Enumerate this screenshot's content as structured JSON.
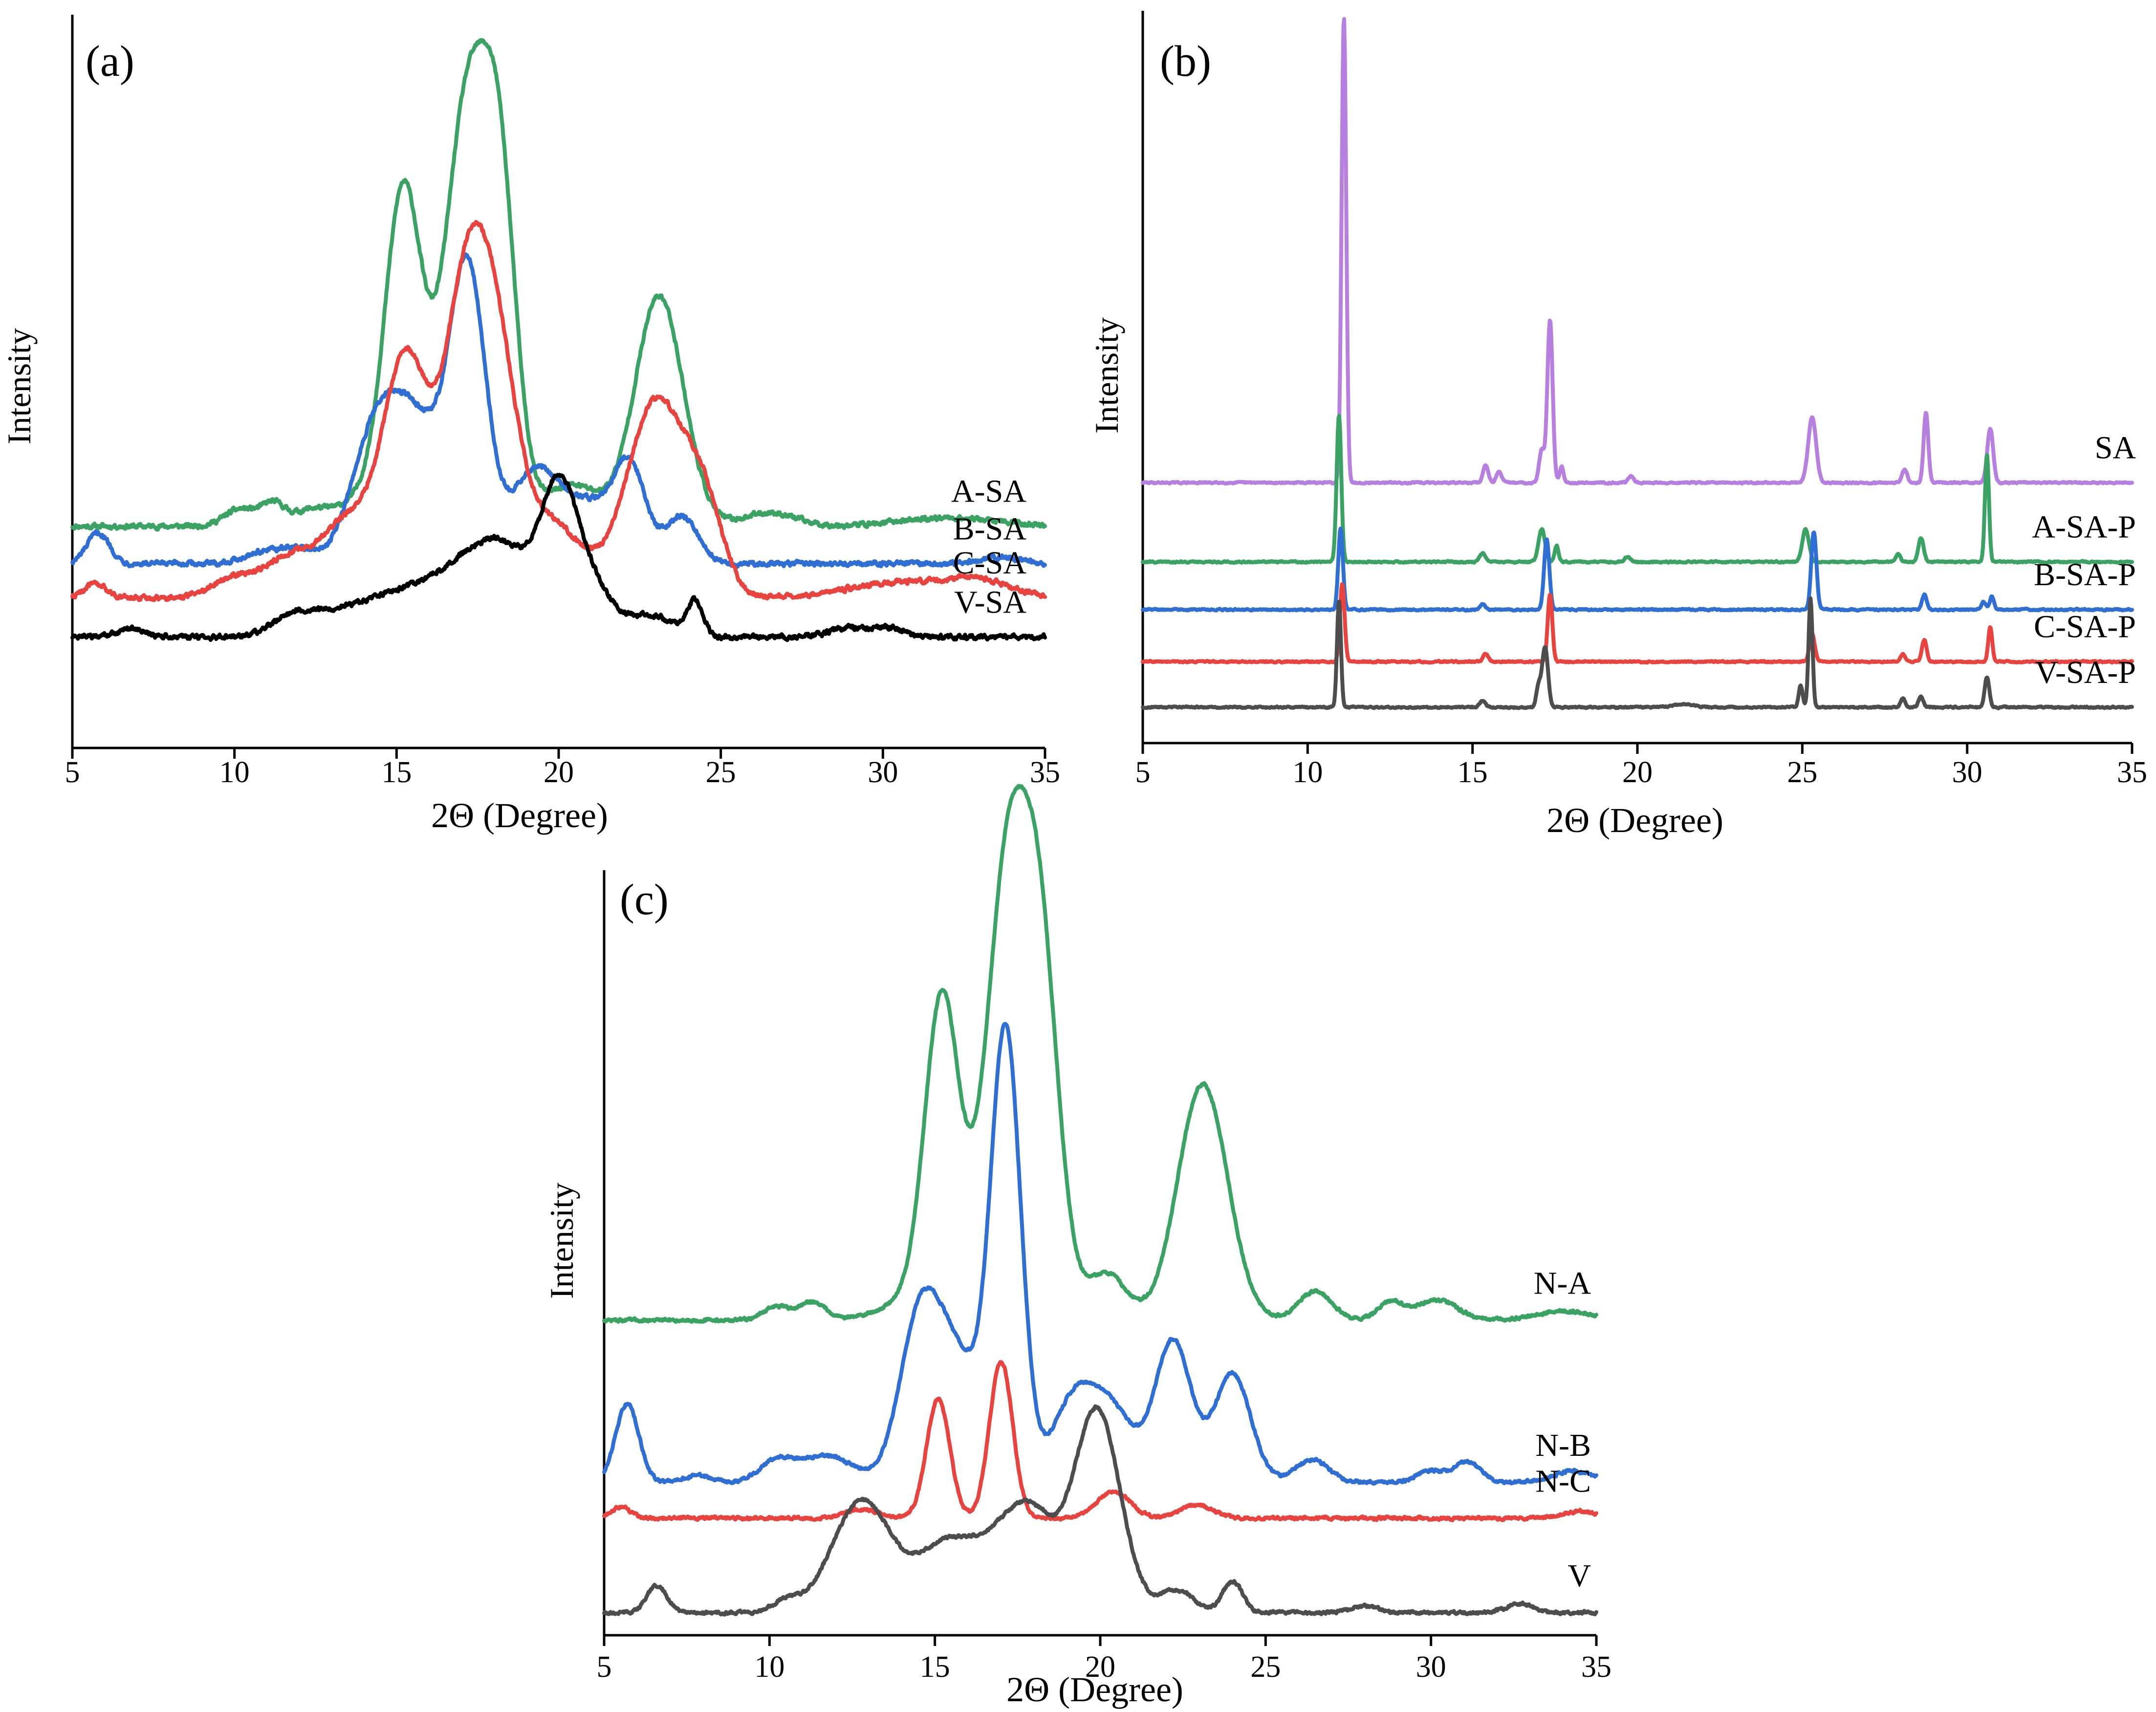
{
  "chart_data": [
    {
      "panel": "(a)",
      "type": "line",
      "title": "",
      "xlabel": "2Θ (Degree)",
      "ylabel": "Intensity",
      "xlim": [
        5,
        35
      ],
      "xticks": [
        5,
        10,
        15,
        20,
        25,
        30,
        35
      ],
      "y_ticks_shown": false,
      "grid": false,
      "series": [
        {
          "name": "A-SA",
          "color": "#3aa363",
          "baseline": 1.2,
          "peaks": [
            [
              10.2,
              0.1,
              0.5
            ],
            [
              11.2,
              0.12,
              0.35
            ],
            [
              12.3,
              0.06,
              0.5
            ],
            [
              15.2,
              1.65,
              0.55
            ],
            [
              17.2,
              2.15,
              0.65
            ],
            [
              18.2,
              1.6,
              0.5
            ],
            [
              16.1,
              0.4,
              1.8
            ],
            [
              20.5,
              0.22,
              0.8
            ],
            [
              23.1,
              1.35,
              0.75
            ],
            [
              26.5,
              0.08,
              0.8
            ],
            [
              32.0,
              0.05,
              1.5
            ]
          ]
        },
        {
          "name": "B-SA",
          "color": "#2f6fd4",
          "baseline": 0.98,
          "peaks": [
            [
              5.8,
              0.18,
              0.35
            ],
            [
              10.9,
              0.07,
              0.6
            ],
            [
              12.0,
              0.08,
              0.5
            ],
            [
              14.2,
              0.55,
              0.7
            ],
            [
              15.5,
              0.85,
              0.9
            ],
            [
              17.2,
              1.65,
              0.55
            ],
            [
              19.3,
              0.55,
              0.8
            ],
            [
              21.0,
              0.3,
              0.7
            ],
            [
              22.2,
              0.55,
              0.5
            ],
            [
              23.8,
              0.28,
              0.5
            ],
            [
              33.6,
              0.04,
              0.6
            ]
          ]
        },
        {
          "name": "C-SA",
          "color": "#e8433f",
          "baseline": 0.78,
          "peaks": [
            [
              5.7,
              0.08,
              0.35
            ],
            [
              10.0,
              0.12,
              0.7
            ],
            [
              11.6,
              0.2,
              0.7
            ],
            [
              13.5,
              0.45,
              0.9
            ],
            [
              15.3,
              1.35,
              0.7
            ],
            [
              17.2,
              1.85,
              0.7
            ],
            [
              18.2,
              0.9,
              0.6
            ],
            [
              19.7,
              0.45,
              1.0
            ],
            [
              23.0,
              1.15,
              0.9
            ],
            [
              24.5,
              0.45,
              0.6
            ],
            [
              30.5,
              0.09,
              1.6
            ],
            [
              33.0,
              0.09,
              1.0
            ]
          ]
        },
        {
          "name": "V-SA",
          "color": "#000000",
          "baseline": 0.55,
          "peaks": [
            [
              6.8,
              0.05,
              0.4
            ],
            [
              11.7,
              0.09,
              0.6
            ],
            [
              13.0,
              0.12,
              1.0
            ],
            [
              15.3,
              0.25,
              1.2
            ],
            [
              17.4,
              0.38,
              1.0
            ],
            [
              18.6,
              0.32,
              0.8
            ],
            [
              20.0,
              0.8,
              0.55
            ],
            [
              21.0,
              0.3,
              0.6
            ],
            [
              22.8,
              0.13,
              0.7
            ],
            [
              24.2,
              0.2,
              0.25
            ],
            [
              29.0,
              0.06,
              0.6
            ],
            [
              30.2,
              0.05,
              0.4
            ]
          ]
        }
      ]
    },
    {
      "panel": "(b)",
      "type": "line",
      "title": "",
      "xlabel": "2Θ (Degree)",
      "ylabel": "Intensity",
      "xlim": [
        5,
        35
      ],
      "xticks": [
        5,
        10,
        15,
        20,
        25,
        30,
        35
      ],
      "y_ticks_shown": false,
      "grid": false,
      "series": [
        {
          "name": "SA",
          "color": "#b77fe0",
          "baseline": 2.05,
          "peaks": [
            [
              11.1,
              4.3,
              0.07
            ],
            [
              15.4,
              0.16,
              0.08
            ],
            [
              15.8,
              0.1,
              0.08
            ],
            [
              17.35,
              1.5,
              0.08
            ],
            [
              17.1,
              0.3,
              0.08
            ],
            [
              17.7,
              0.15,
              0.06
            ],
            [
              19.8,
              0.06,
              0.08
            ],
            [
              25.3,
              0.6,
              0.12
            ],
            [
              28.1,
              0.12,
              0.08
            ],
            [
              28.75,
              0.65,
              0.07
            ],
            [
              30.7,
              0.5,
              0.09
            ]
          ]
        },
        {
          "name": "A-SA-P",
          "color": "#3aa363",
          "baseline": 1.32,
          "peaks": [
            [
              10.95,
              1.35,
              0.07
            ],
            [
              15.3,
              0.08,
              0.08
            ],
            [
              17.1,
              0.3,
              0.1
            ],
            [
              17.55,
              0.15,
              0.06
            ],
            [
              19.7,
              0.05,
              0.08
            ],
            [
              25.1,
              0.3,
              0.1
            ],
            [
              27.9,
              0.07,
              0.07
            ],
            [
              28.6,
              0.22,
              0.08
            ],
            [
              30.6,
              1.0,
              0.06
            ]
          ]
        },
        {
          "name": "B-SA-P",
          "color": "#2f6fd4",
          "baseline": 0.88,
          "peaks": [
            [
              11.0,
              0.75,
              0.07
            ],
            [
              15.3,
              0.05,
              0.08
            ],
            [
              17.25,
              0.65,
              0.08
            ],
            [
              25.35,
              0.72,
              0.08
            ],
            [
              28.7,
              0.14,
              0.07
            ],
            [
              30.5,
              0.07,
              0.07
            ],
            [
              30.75,
              0.12,
              0.06
            ]
          ]
        },
        {
          "name": "C-SA-P",
          "color": "#e8433f",
          "baseline": 0.4,
          "peaks": [
            [
              11.05,
              0.72,
              0.07
            ],
            [
              15.4,
              0.07,
              0.08
            ],
            [
              17.35,
              0.62,
              0.07
            ],
            [
              25.3,
              0.25,
              0.08
            ],
            [
              28.05,
              0.07,
              0.07
            ],
            [
              28.7,
              0.2,
              0.07
            ],
            [
              30.7,
              0.32,
              0.06
            ]
          ]
        },
        {
          "name": "V-SA-P",
          "color": "#4d4d4d",
          "baseline": -0.02,
          "peaks": [
            [
              10.95,
              0.98,
              0.06
            ],
            [
              15.3,
              0.06,
              0.08
            ],
            [
              17.2,
              0.55,
              0.09
            ],
            [
              17.0,
              0.18,
              0.07
            ],
            [
              21.4,
              0.03,
              0.3
            ],
            [
              25.25,
              1.0,
              0.06
            ],
            [
              24.95,
              0.2,
              0.06
            ],
            [
              28.05,
              0.08,
              0.07
            ],
            [
              28.6,
              0.1,
              0.07
            ],
            [
              30.6,
              0.28,
              0.07
            ]
          ]
        }
      ]
    },
    {
      "panel": "(c)",
      "type": "line",
      "title": "",
      "xlabel": "2Θ (Degree)",
      "ylabel": "Intensity",
      "xlim": [
        5,
        35
      ],
      "xticks": [
        5,
        10,
        15,
        20,
        25,
        30,
        35
      ],
      "y_ticks_shown": false,
      "grid": false,
      "series": [
        {
          "name": "N-A",
          "color": "#3aa363",
          "baseline": 1.3,
          "peaks": [
            [
              10.2,
              0.06,
              0.4
            ],
            [
              11.3,
              0.08,
              0.4
            ],
            [
              15.2,
              1.22,
              0.5
            ],
            [
              17.2,
              1.72,
              0.6
            ],
            [
              18.2,
              1.45,
              0.55
            ],
            [
              16.2,
              0.3,
              1.5
            ],
            [
              20.2,
              0.2,
              0.6
            ],
            [
              23.1,
              1.05,
              0.75
            ],
            [
              26.5,
              0.13,
              0.5
            ],
            [
              28.8,
              0.08,
              0.4
            ],
            [
              30.2,
              0.09,
              0.6
            ],
            [
              34.0,
              0.04,
              0.8
            ]
          ]
        },
        {
          "name": "N-B",
          "color": "#2f6fd4",
          "baseline": 0.58,
          "peaks": [
            [
              5.7,
              0.35,
              0.35
            ],
            [
              7.8,
              0.03,
              0.4
            ],
            [
              10.2,
              0.09,
              0.5
            ],
            [
              11.7,
              0.12,
              0.8
            ],
            [
              14.5,
              0.6,
              0.6
            ],
            [
              15.6,
              0.55,
              0.8
            ],
            [
              17.15,
              1.95,
              0.45
            ],
            [
              19.3,
              0.4,
              0.7
            ],
            [
              20.5,
              0.25,
              0.6
            ],
            [
              22.2,
              0.63,
              0.55
            ],
            [
              24.0,
              0.48,
              0.55
            ],
            [
              26.4,
              0.1,
              0.5
            ],
            [
              30.0,
              0.05,
              0.4
            ],
            [
              31.1,
              0.09,
              0.4
            ],
            [
              34.3,
              0.05,
              0.6
            ]
          ]
        },
        {
          "name": "N-C",
          "color": "#e8433f",
          "baseline": 0.42,
          "peaks": [
            [
              5.5,
              0.05,
              0.3
            ],
            [
              12.8,
              0.04,
              0.5
            ],
            [
              15.1,
              0.53,
              0.35
            ],
            [
              17.0,
              0.7,
              0.35
            ],
            [
              20.4,
              0.12,
              0.5
            ],
            [
              22.9,
              0.06,
              0.5
            ],
            [
              34.5,
              0.03,
              0.5
            ]
          ]
        },
        {
          "name": "V",
          "color": "#4d4d4d",
          "baseline": 0.0,
          "peaks": [
            [
              6.6,
              0.12,
              0.3
            ],
            [
              10.5,
              0.05,
              0.4
            ],
            [
              12.8,
              0.5,
              0.9
            ],
            [
              15.2,
              0.25,
              0.8
            ],
            [
              17.0,
              0.3,
              1.0
            ],
            [
              18.0,
              0.28,
              0.7
            ],
            [
              19.9,
              0.9,
              0.7
            ],
            [
              22.3,
              0.1,
              0.5
            ],
            [
              24.0,
              0.14,
              0.3
            ],
            [
              28.0,
              0.03,
              0.4
            ],
            [
              32.7,
              0.04,
              0.4
            ]
          ]
        }
      ]
    }
  ]
}
